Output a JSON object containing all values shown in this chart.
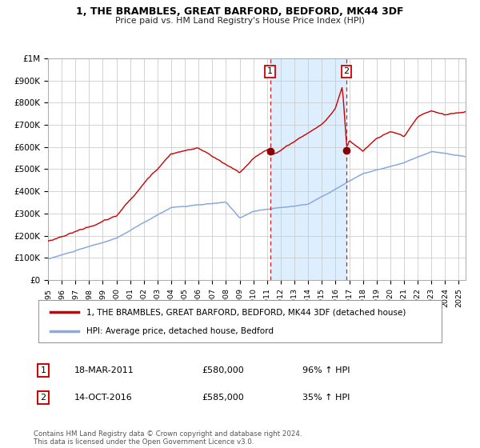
{
  "title": "1, THE BRAMBLES, GREAT BARFORD, BEDFORD, MK44 3DF",
  "subtitle": "Price paid vs. HM Land Registry's House Price Index (HPI)",
  "legend_line1": "1, THE BRAMBLES, GREAT BARFORD, BEDFORD, MK44 3DF (detached house)",
  "legend_line2": "HPI: Average price, detached house, Bedford",
  "annotation1_label": "1",
  "annotation1_date": "18-MAR-2011",
  "annotation1_price": "£580,000",
  "annotation1_hpi": "96% ↑ HPI",
  "annotation1_year": 2011.22,
  "annotation1_value": 580000,
  "annotation2_label": "2",
  "annotation2_date": "14-OCT-2016",
  "annotation2_price": "£585,000",
  "annotation2_hpi": "35% ↑ HPI",
  "annotation2_year": 2016.79,
  "annotation2_value": 585000,
  "ylim": [
    0,
    1000000
  ],
  "yticks": [
    0,
    100000,
    200000,
    300000,
    400000,
    500000,
    600000,
    700000,
    800000,
    900000,
    1000000
  ],
  "ytick_labels": [
    "£0",
    "£100K",
    "£200K",
    "£300K",
    "£400K",
    "£500K",
    "£600K",
    "£700K",
    "£800K",
    "£900K",
    "£1M"
  ],
  "xlim_start": 1995.0,
  "xlim_end": 2025.5,
  "background_color": "#ffffff",
  "plot_bg_color": "#ffffff",
  "shade_color": "#ddeeff",
  "grid_color": "#cccccc",
  "line_red_color": "#cc0000",
  "line_blue_color": "#88aadd",
  "dot_color": "#880000",
  "footer": "Contains HM Land Registry data © Crown copyright and database right 2024.\nThis data is licensed under the Open Government Licence v3.0."
}
